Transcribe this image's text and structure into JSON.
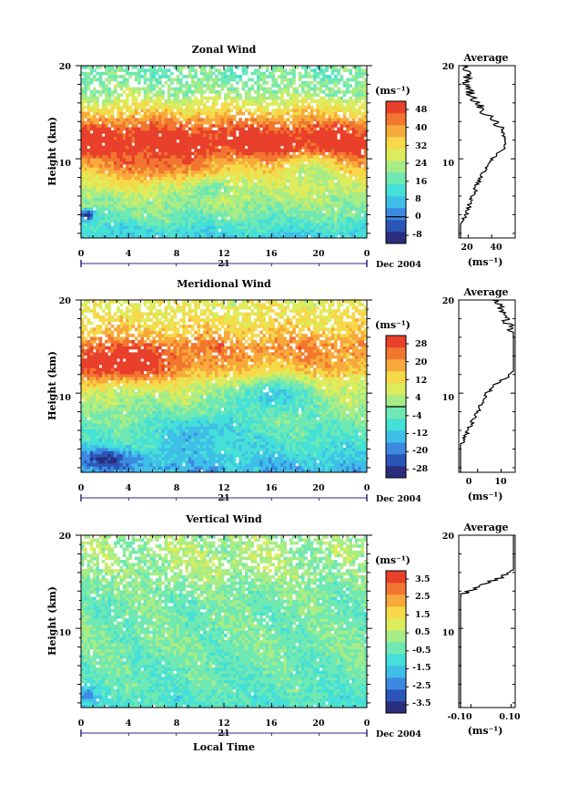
{
  "chart_data": [
    {
      "type": "heatmap",
      "title": "Zonal Wind",
      "xlabel": "",
      "ylabel": "Height (km)",
      "x_ticks": [
        "0",
        "4",
        "8",
        "12",
        "16",
        "20",
        "0"
      ],
      "y_ticks": [
        "10",
        "20"
      ],
      "xlim": [
        0,
        24
      ],
      "ylim": [
        1.5,
        20
      ],
      "date_axis": {
        "day": "21",
        "month_label": "Dec 2004"
      },
      "colorbar": {
        "unit": "(ms⁻¹)",
        "ticks": [
          "48",
          "40",
          "32",
          "24",
          "16",
          "8",
          "0",
          "-8"
        ],
        "range": [
          -12,
          52
        ],
        "contour": 0
      },
      "field": {
        "profile": [
          [
            2,
            10
          ],
          [
            4,
            18
          ],
          [
            6,
            24
          ],
          [
            8,
            30
          ],
          [
            10,
            40
          ],
          [
            11,
            50
          ],
          [
            12,
            52
          ],
          [
            13,
            48
          ],
          [
            14,
            42
          ],
          [
            15,
            34
          ],
          [
            16,
            28
          ],
          [
            17,
            22
          ],
          [
            18,
            20
          ],
          [
            19,
            18
          ],
          [
            20,
            18
          ]
        ],
        "features": [
          {
            "t": 6,
            "h": 9,
            "amp": 10,
            "wt": 4,
            "wh": 1.5
          },
          {
            "t": 0.5,
            "h": 4,
            "amp": -30,
            "wt": 0.6,
            "wh": 0.6
          },
          {
            "t": 11,
            "h": 7,
            "amp": -12,
            "wt": 1.5,
            "wh": 1
          },
          {
            "t": 19,
            "h": 9,
            "amp": -10,
            "wt": 2,
            "wh": 1.5
          }
        ]
      },
      "average_panel": {
        "title": "Average",
        "x_ticks": [
          "20",
          "40"
        ],
        "x_range": [
          12,
          60
        ],
        "unit": "(ms⁻¹)",
        "y_ticks": [
          "10",
          "20"
        ]
      }
    },
    {
      "type": "heatmap",
      "title": "Meridional Wind",
      "xlabel": "",
      "ylabel": "Height (km)",
      "x_ticks": [
        "0",
        "4",
        "8",
        "12",
        "16",
        "20",
        "0"
      ],
      "y_ticks": [
        "10",
        "20"
      ],
      "xlim": [
        0,
        24
      ],
      "ylim": [
        1.5,
        20
      ],
      "date_axis": {
        "day": "21",
        "month_label": "Dec 2004"
      },
      "colorbar": {
        "unit": "(ms⁻¹)",
        "ticks": [
          "28",
          "20",
          "12",
          "4",
          "-4",
          "-12",
          "-20",
          "-28"
        ],
        "range": [
          -32,
          32
        ],
        "contour": 0
      },
      "field": {
        "profile": [
          [
            2,
            -14
          ],
          [
            4,
            -8
          ],
          [
            6,
            -4
          ],
          [
            8,
            0
          ],
          [
            10,
            4
          ],
          [
            11,
            8
          ],
          [
            12,
            14
          ],
          [
            13,
            18
          ],
          [
            14,
            20
          ],
          [
            15,
            22
          ],
          [
            16,
            18
          ],
          [
            17,
            14
          ],
          [
            18,
            12
          ],
          [
            19,
            10
          ],
          [
            20,
            8
          ]
        ],
        "features": [
          {
            "t": 2,
            "h": 3,
            "amp": -14,
            "wt": 3,
            "wh": 1
          },
          {
            "t": 3,
            "h": 13,
            "amp": 16,
            "wt": 5,
            "wh": 2
          },
          {
            "t": 16,
            "h": 10,
            "amp": -16,
            "wt": 3,
            "wh": 2
          },
          {
            "t": 10,
            "h": 6,
            "amp": -10,
            "wt": 3,
            "wh": 2
          }
        ]
      },
      "average_panel": {
        "title": "Average",
        "x_ticks": [
          "0",
          "10"
        ],
        "x_range": [
          -8,
          16
        ],
        "unit": "(ms⁻¹)",
        "y_ticks": [
          "10",
          "20"
        ]
      }
    },
    {
      "type": "heatmap",
      "title": "Vertical Wind",
      "xlabel": "Local Time",
      "ylabel": "Height (km)",
      "x_ticks": [
        "0",
        "4",
        "8",
        "12",
        "16",
        "20",
        "0"
      ],
      "y_ticks": [
        "10",
        "20"
      ],
      "xlim": [
        0,
        24
      ],
      "ylim": [
        1.5,
        20
      ],
      "date_axis": {
        "day": "21",
        "month_label": "Dec 2004"
      },
      "colorbar": {
        "unit": "(ms⁻¹)",
        "ticks": [
          "3.5",
          "2.5",
          "1.5",
          "0.5",
          "-0.5",
          "-1.5",
          "-2.5",
          "-3.5"
        ],
        "range": [
          -4,
          4
        ]
      },
      "field": {
        "profile": [
          [
            2,
            -0.8
          ],
          [
            4,
            -0.5
          ],
          [
            6,
            -0.4
          ],
          [
            8,
            -0.2
          ],
          [
            10,
            -0.2
          ],
          [
            12,
            -0.3
          ],
          [
            14,
            -0.1
          ],
          [
            16,
            0.1
          ],
          [
            18,
            0.2
          ],
          [
            20,
            0.3
          ]
        ],
        "features": [
          {
            "t": 0.5,
            "h": 3,
            "amp": -1.2,
            "wt": 0.8,
            "wh": 1
          },
          {
            "t": 12,
            "h": 17,
            "amp": 0.4,
            "wt": 6,
            "wh": 1.5
          }
        ]
      },
      "average_panel": {
        "title": "Average",
        "x_ticks": [
          "-0.10",
          "0.10"
        ],
        "x_range": [
          -0.16,
          0.12
        ],
        "unit": "(ms⁻¹)",
        "y_ticks": [
          "10",
          "20"
        ]
      }
    }
  ],
  "colormap": [
    "#2a2e7c",
    "#2c55b8",
    "#3c89e2",
    "#3fbfe8",
    "#45e0d7",
    "#6fe8b3",
    "#a8ec86",
    "#dcec5c",
    "#f6d848",
    "#f7a93b",
    "#f2762f",
    "#e8402a"
  ]
}
